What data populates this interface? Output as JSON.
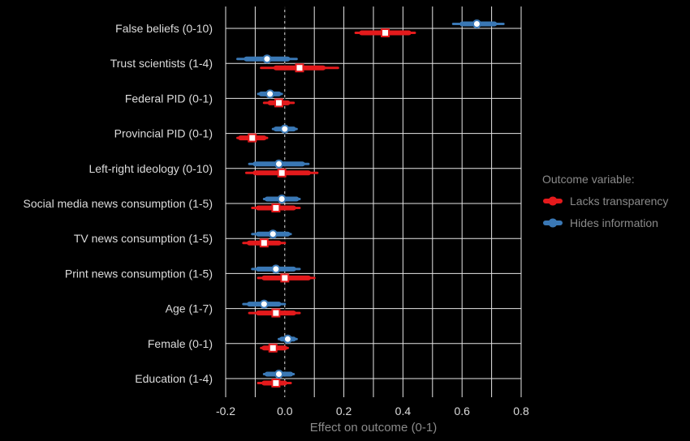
{
  "chart_data": {
    "type": "scatter",
    "xlabel": "Effect on outcome (0-1)",
    "xlim": [
      -0.2,
      0.8
    ],
    "x_ticks": [
      "-0.2",
      "0.0",
      "0.2",
      "0.4",
      "0.6",
      "0.8"
    ],
    "grid": true,
    "reference_line": 0,
    "legend_title": "Outcome variable:",
    "legend_placement": "right",
    "categories": [
      "False beliefs (0-10)",
      "Trust scientists (1-4)",
      "Federal PID (0-1)",
      "Provincial PID (0-1)",
      "Left-right ideology (0-10)",
      "Social media news consumption (1-5)",
      "TV news consumption (1-5)",
      "Print news consumption (1-5)",
      "Age (1-7)",
      "Female (0-1)",
      "Education (1-4)"
    ],
    "series": [
      {
        "name": "Lacks transparency",
        "color": "#e41a1c",
        "marker": "square",
        "estimate": [
          0.34,
          0.05,
          -0.02,
          -0.11,
          -0.01,
          -0.03,
          -0.07,
          0.0,
          -0.03,
          -0.04,
          -0.03
        ],
        "ci_inner": [
          [
            0.26,
            0.42
          ],
          [
            -0.03,
            0.13
          ],
          [
            -0.05,
            0.01
          ],
          [
            -0.15,
            -0.07
          ],
          [
            -0.1,
            0.08
          ],
          [
            -0.09,
            0.03
          ],
          [
            -0.12,
            -0.02
          ],
          [
            -0.07,
            0.08
          ],
          [
            -0.09,
            0.03
          ],
          [
            -0.07,
            0.0
          ],
          [
            -0.07,
            0.0
          ]
        ],
        "ci_outer": [
          [
            0.24,
            0.44
          ],
          [
            -0.08,
            0.18
          ],
          [
            -0.07,
            0.03
          ],
          [
            -0.16,
            -0.06
          ],
          [
            -0.13,
            0.11
          ],
          [
            -0.11,
            0.05
          ],
          [
            -0.14,
            0.0
          ],
          [
            -0.09,
            0.1
          ],
          [
            -0.12,
            0.05
          ],
          [
            -0.08,
            0.01
          ],
          [
            -0.09,
            0.02
          ]
        ]
      },
      {
        "name": "Hides information",
        "color": "#3a78b5",
        "marker": "circle",
        "estimate": [
          0.65,
          -0.06,
          -0.05,
          0.0,
          -0.02,
          -0.01,
          -0.04,
          -0.03,
          -0.07,
          0.01,
          -0.02
        ],
        "ci_inner": [
          [
            0.6,
            0.71
          ],
          [
            -0.13,
            0.01
          ],
          [
            -0.08,
            -0.02
          ],
          [
            -0.03,
            0.03
          ],
          [
            -0.1,
            0.06
          ],
          [
            -0.06,
            0.04
          ],
          [
            -0.09,
            0.01
          ],
          [
            -0.09,
            0.03
          ],
          [
            -0.12,
            -0.02
          ],
          [
            -0.01,
            0.03
          ],
          [
            -0.06,
            0.02
          ]
        ],
        "ci_outer": [
          [
            0.57,
            0.74
          ],
          [
            -0.16,
            0.04
          ],
          [
            -0.09,
            -0.01
          ],
          [
            -0.04,
            0.04
          ],
          [
            -0.12,
            0.08
          ],
          [
            -0.07,
            0.05
          ],
          [
            -0.11,
            0.02
          ],
          [
            -0.11,
            0.05
          ],
          [
            -0.14,
            0.0
          ],
          [
            -0.02,
            0.04
          ],
          [
            -0.07,
            0.03
          ]
        ]
      }
    ]
  }
}
